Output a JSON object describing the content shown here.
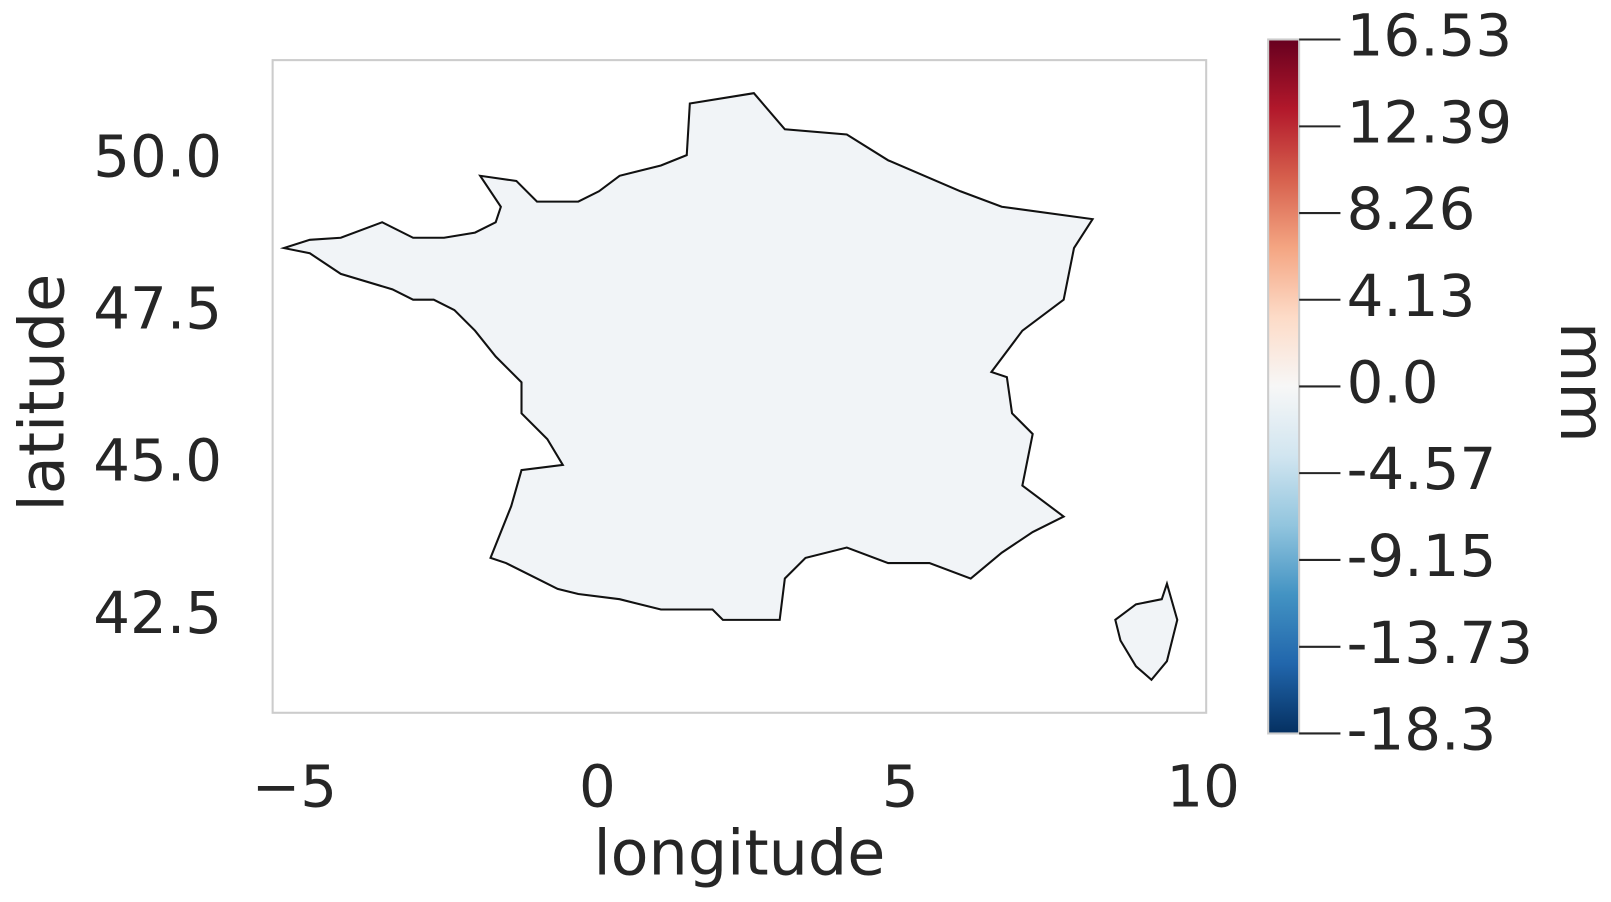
{
  "chart_data": {
    "type": "map",
    "xlabel": "longitude",
    "ylabel": "latitude",
    "xlim": [
      -5.36,
      10.05
    ],
    "ylim": [
      40.92,
      51.65
    ],
    "xticks": [
      {
        "value": -5,
        "label": "−5"
      },
      0,
      5,
      10
    ],
    "yticks": [
      {
        "value": 50,
        "label": "50.0"
      },
      {
        "value": 47.5,
        "label": "47.5"
      },
      {
        "value": 45,
        "label": "45.0"
      },
      {
        "value": 42.5,
        "label": "42.5"
      }
    ],
    "grid": false,
    "colorbar": {
      "label": "mm",
      "colormap": "RdBu_r",
      "vlim": [
        -18.3,
        16.53
      ],
      "vcenter": 0,
      "ticks": [
        16.53,
        12.39,
        8.26,
        4.13,
        {
          "value": 0,
          "label": "0.0"
        },
        -4.57,
        -9.15,
        -13.73,
        -18.3
      ]
    }
  }
}
